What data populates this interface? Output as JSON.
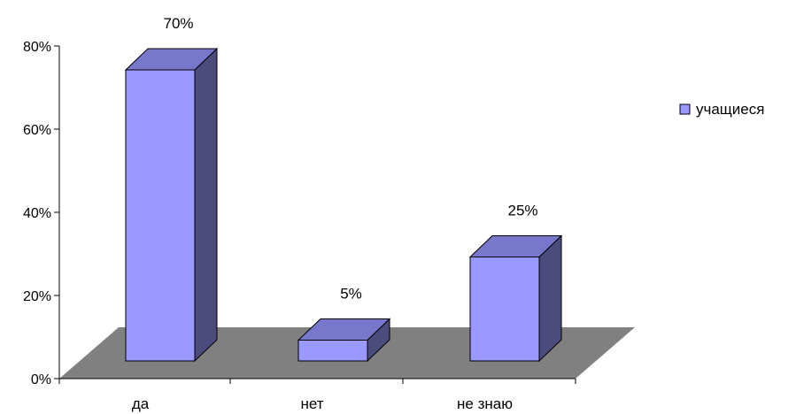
{
  "chart_data": {
    "type": "bar",
    "categories": [
      "да",
      "нет",
      "не знаю"
    ],
    "series": [
      {
        "name": "учащиеся",
        "values": [
          70,
          5,
          25
        ]
      }
    ],
    "data_labels": [
      "70%",
      "5%",
      "25%"
    ],
    "y_ticks": [
      "0%",
      "20%",
      "40%",
      "60%",
      "80%"
    ],
    "ylim": [
      0,
      80
    ],
    "legend_position": "right",
    "style": "3d",
    "colors": {
      "bar_front": "#9999ff",
      "bar_side": "#4b4b7e",
      "bar_top": "#7777cc",
      "floor": "#808080",
      "axis": "#000000"
    }
  }
}
